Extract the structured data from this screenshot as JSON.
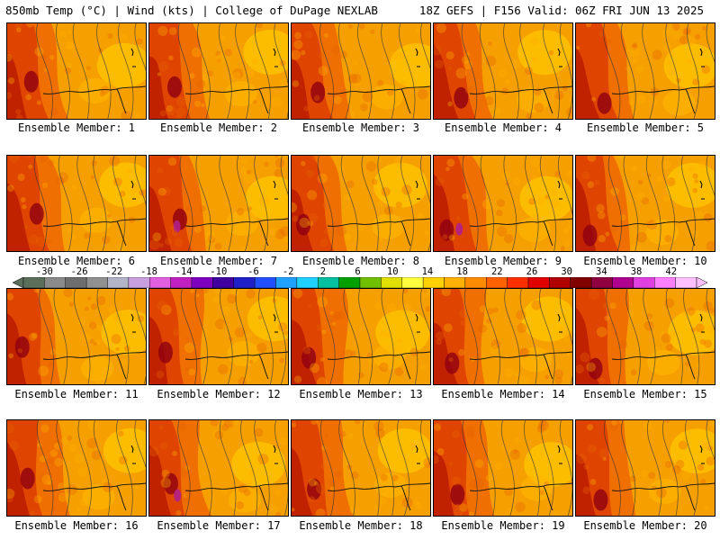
{
  "header": {
    "left_title": "850mb Temp (°C) | Wind (kts) | College of DuPage NEXLAB",
    "right_title": "18Z GEFS | F156 Valid: 06Z FRI JUN 13 2025"
  },
  "members": [
    {
      "caption": "Ensemble Member: 1"
    },
    {
      "caption": "Ensemble Member: 2"
    },
    {
      "caption": "Ensemble Member: 3"
    },
    {
      "caption": "Ensemble Member: 4"
    },
    {
      "caption": "Ensemble Member: 5"
    },
    {
      "caption": "Ensemble Member: 6"
    },
    {
      "caption": "Ensemble Member: 7"
    },
    {
      "caption": "Ensemble Member: 8"
    },
    {
      "caption": "Ensemble Member: 9"
    },
    {
      "caption": "Ensemble Member: 10"
    },
    {
      "caption": "Ensemble Member: 11"
    },
    {
      "caption": "Ensemble Member: 12"
    },
    {
      "caption": "Ensemble Member: 13"
    },
    {
      "caption": "Ensemble Member: 14"
    },
    {
      "caption": "Ensemble Member: 15"
    },
    {
      "caption": "Ensemble Member: 16"
    },
    {
      "caption": "Ensemble Member: 17"
    },
    {
      "caption": "Ensemble Member: 18"
    },
    {
      "caption": "Ensemble Member: 19"
    },
    {
      "caption": "Ensemble Member: 20"
    }
  ],
  "colorbar": {
    "labels": [
      "-30",
      "-26",
      "-22",
      "-18",
      "-14",
      "-10",
      "-6",
      "-2",
      "2",
      "6",
      "10",
      "14",
      "18",
      "22",
      "26",
      "30",
      "34",
      "38",
      "42"
    ],
    "colors": [
      "#5a6e5a",
      "#8a8a8a",
      "#6e6e6e",
      "#909090",
      "#b4b4c8",
      "#c8a0e0",
      "#e060e0",
      "#c020c0",
      "#8000c0",
      "#4000a0",
      "#2020c8",
      "#2050ff",
      "#20a0ff",
      "#20d0ff",
      "#00c0a0",
      "#00a000",
      "#70c000",
      "#e0e000",
      "#ffff40",
      "#ffd000",
      "#ffb000",
      "#ff8c00",
      "#ff6000",
      "#ff3000",
      "#e00000",
      "#b00000",
      "#800000",
      "#900040",
      "#b00090",
      "#e040e0",
      "#ff80ff",
      "#ffc0ff"
    ]
  }
}
